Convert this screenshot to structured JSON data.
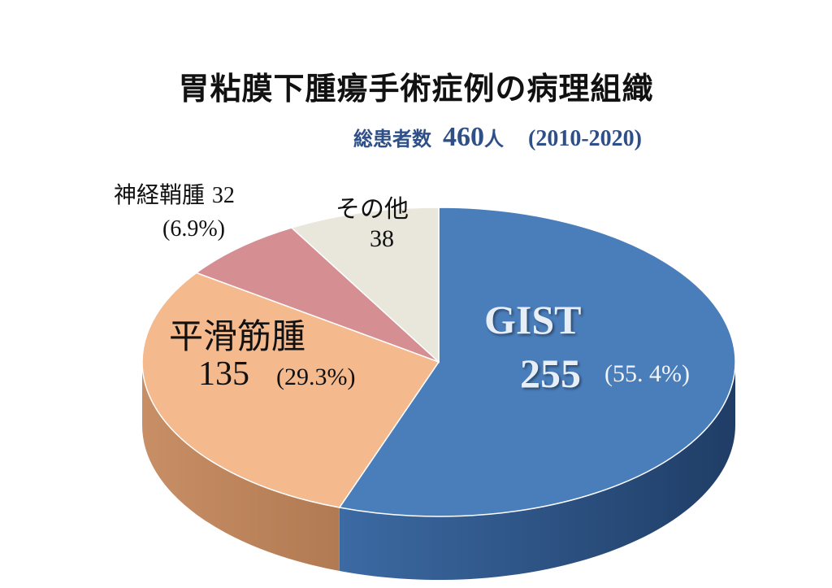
{
  "title": "胃粘膜下腫瘍手術症例の病理組織",
  "subtitle": {
    "label": "総患者数",
    "count": "460",
    "unit": "人",
    "years": "(2010-2020)"
  },
  "colors": {
    "gist": "#4a7ebb",
    "leiomyoma": "#f4b98d",
    "schwannoma": "#d58f93",
    "other": "#e9e6dc"
  },
  "chart_data": {
    "type": "pie",
    "total": 460,
    "slices": [
      {
        "label": "GIST",
        "value": 255,
        "percent": "(55. 4%)",
        "value_text": "255",
        "color": "#4a7ebb"
      },
      {
        "label": "平滑筋腫",
        "value": 135,
        "percent": "(29.3%)",
        "value_text": "135",
        "color": "#f4b98d"
      },
      {
        "label": "神経鞘腫",
        "value": 32,
        "percent": "(6.9%)",
        "value_text": "32",
        "color": "#d58f93"
      },
      {
        "label": "その他",
        "value": 38,
        "percent": "",
        "value_text": "38",
        "color": "#e9e6dc"
      }
    ]
  }
}
